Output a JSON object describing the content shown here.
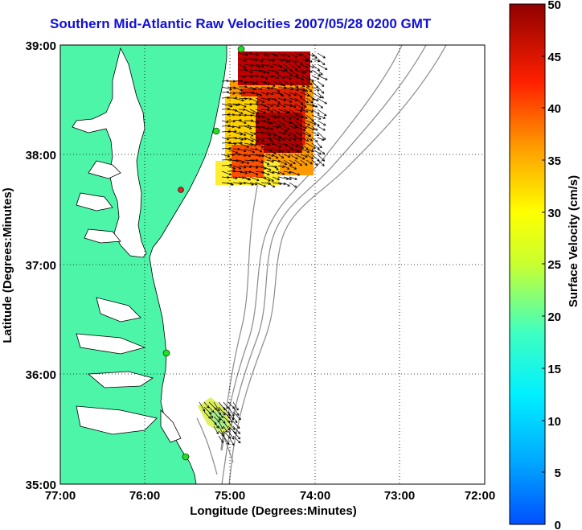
{
  "title": "Southern Mid-Atlantic Raw Velocities 2007/05/28 0200 GMT",
  "x_axis": {
    "label": "Longitude (Degrees:Minutes)",
    "ticks": [
      "77:00",
      "76:00",
      "75:00",
      "74:00",
      "73:00",
      "72:00"
    ]
  },
  "y_axis": {
    "label": "Latitude (Degrees:Minutes)",
    "ticks": [
      "39:00",
      "38:00",
      "37:00",
      "36:00",
      "35:00"
    ]
  },
  "colorbar": {
    "label": "Surface Velocity (cm/s)",
    "ticks": [
      "50",
      "45",
      "40",
      "35",
      "30",
      "25",
      "20",
      "15",
      "10",
      "5",
      "0"
    ],
    "range": [
      0,
      50
    ],
    "colormap": "jet"
  },
  "colors": {
    "title": "#1010d8",
    "land": "#4cf5a8",
    "coast": "#000000",
    "bathymetry": "#808080",
    "site_marker": "#22dd22",
    "site_marker_alt": "#dd2222"
  },
  "map": {
    "lon_range": [
      -77,
      -72
    ],
    "lat_range": [
      35,
      39
    ],
    "grid": true
  }
}
